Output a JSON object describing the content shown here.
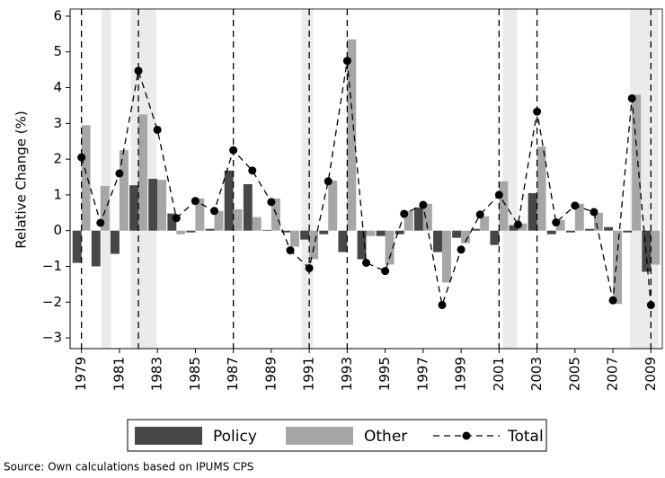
{
  "chart_data": {
    "type": "bar-line",
    "ylabel": "Relative Change (%)",
    "source": "Source: Own calculations based on IPUMS CPS",
    "x": [
      1979,
      1980,
      1981,
      1982,
      1983,
      1984,
      1985,
      1986,
      1987,
      1988,
      1989,
      1990,
      1991,
      1992,
      1993,
      1994,
      1995,
      1996,
      1997,
      1998,
      1999,
      2000,
      2001,
      2002,
      2003,
      2004,
      2005,
      2006,
      2007,
      2008,
      2009
    ],
    "series": [
      {
        "name": "Policy",
        "color": "#474747",
        "kind": "bar",
        "values": [
          -0.9,
          -1.0,
          -0.65,
          1.27,
          1.45,
          0.48,
          -0.05,
          0.05,
          1.68,
          1.3,
          0.02,
          -0.05,
          -0.25,
          -0.1,
          -0.6,
          -0.8,
          -0.15,
          -0.1,
          0.65,
          -0.6,
          -0.2,
          0.05,
          -0.4,
          0.15,
          1.05,
          -0.1,
          -0.05,
          0.05,
          0.1,
          -0.05,
          -1.15
        ]
      },
      {
        "name": "Other",
        "color": "#a6a6a6",
        "kind": "bar",
        "values": [
          2.95,
          1.25,
          2.25,
          3.25,
          1.42,
          -0.1,
          0.9,
          0.55,
          0.6,
          0.38,
          0.9,
          -0.45,
          -0.8,
          1.4,
          5.35,
          -0.15,
          -0.95,
          0.55,
          0.75,
          -1.45,
          -0.35,
          0.4,
          1.38,
          0.2,
          2.35,
          0.3,
          0.75,
          0.5,
          -2.05,
          3.8,
          -0.95
        ]
      },
      {
        "name": "Total",
        "color": "#000000",
        "kind": "line",
        "values": [
          2.05,
          0.22,
          1.6,
          4.47,
          2.82,
          0.35,
          0.83,
          0.55,
          2.25,
          1.68,
          0.8,
          -0.55,
          -1.05,
          1.38,
          4.75,
          -0.9,
          -1.13,
          0.47,
          0.72,
          -2.08,
          -0.53,
          0.45,
          1.0,
          0.17,
          3.33,
          0.23,
          0.7,
          0.52,
          -1.95,
          3.7,
          -2.08
        ]
      }
    ],
    "xlim": [
      1978.4,
      2009.6
    ],
    "xticks": [
      1979,
      1981,
      1983,
      1985,
      1987,
      1989,
      1991,
      1993,
      1995,
      1997,
      1999,
      2001,
      2003,
      2005,
      2007,
      2009
    ],
    "ylim": [
      -3.3,
      6.2
    ],
    "yticks": [
      {
        "value": -3,
        "label": "−3"
      },
      {
        "value": -2,
        "label": "−2"
      },
      {
        "value": -1,
        "label": "−1"
      },
      0,
      1,
      2,
      3,
      4,
      5,
      6
    ],
    "vlines": [
      1979,
      1982,
      1987,
      1991,
      1993,
      2001,
      2003,
      2009
    ],
    "shaded_regions": [
      [
        1980.05,
        1980.55
      ],
      [
        1981.6,
        1982.95
      ],
      [
        1990.6,
        1991.2
      ],
      [
        2001.2,
        2001.95
      ],
      [
        2007.9,
        2009.4
      ]
    ],
    "shade_color": "#ebebeb",
    "legend": "bottom"
  }
}
